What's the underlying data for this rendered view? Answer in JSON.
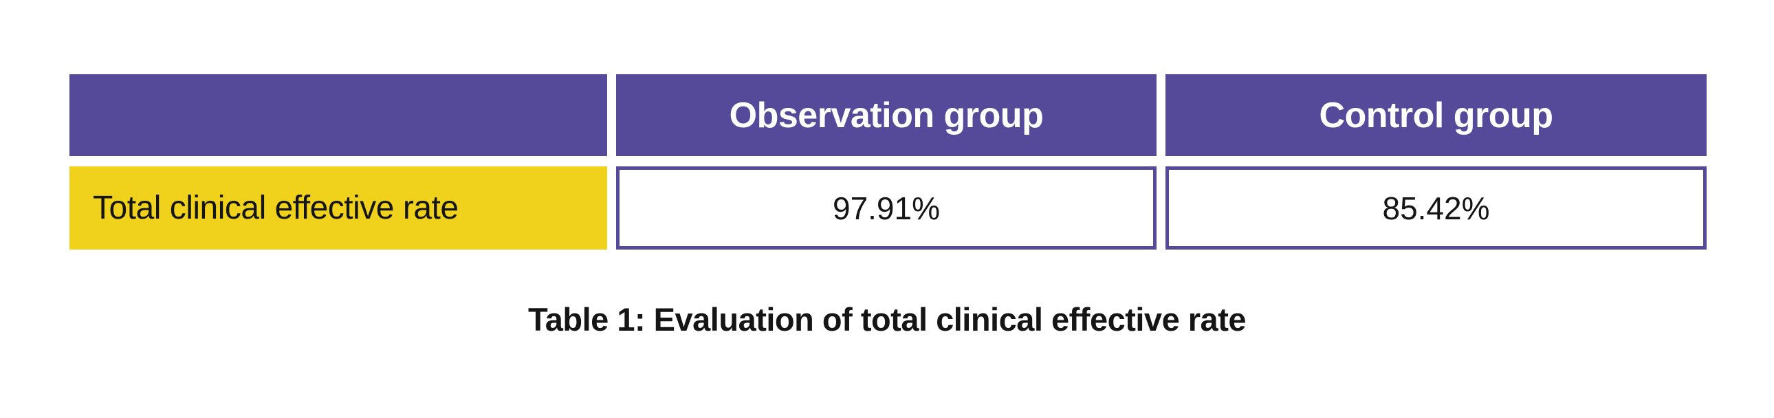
{
  "caption": "Table 1: Evaluation of total clinical effective rate",
  "table": {
    "columns": [
      "",
      "Observation group",
      "Control group"
    ],
    "rows": [
      {
        "label": "Total clinical effective rate",
        "values": [
          "97.91%",
          "85.42%"
        ]
      }
    ]
  },
  "colors": {
    "page_bg": "#FFFFFF",
    "header_bg": "#554A9A",
    "header_text": "#FFFFFF",
    "label_bg": "#F0D11C",
    "cell_border": "#554A9A",
    "body_text": "#151515"
  },
  "chart_data": {
    "type": "table",
    "title": "Table 1: Evaluation of total clinical effective rate",
    "columns": [
      "",
      "Observation group",
      "Control group"
    ],
    "rows": [
      [
        "Total clinical effective rate",
        "97.91%",
        "85.42%"
      ]
    ],
    "series": [
      {
        "name": "Observation group",
        "values": [
          97.91
        ]
      },
      {
        "name": "Control group",
        "values": [
          85.42
        ]
      }
    ],
    "categories": [
      "Total clinical effective rate"
    ],
    "unit": "%"
  }
}
